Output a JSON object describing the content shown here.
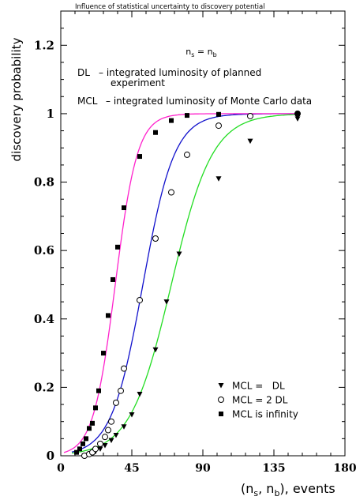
{
  "chart_data": {
    "type": "line",
    "title": "Influence of statistical uncertainty to discovery potential",
    "subtitle": "n_s = n_b",
    "xlabel": "(n_s, n_b), events",
    "ylabel": "discovery probability",
    "xlim": [
      0,
      180
    ],
    "ylim": [
      0,
      1.3
    ],
    "x_ticks": [
      "0",
      "45",
      "90",
      "135",
      "180"
    ],
    "y_ticks": [
      "0",
      "0.2",
      "0.4",
      "0.6",
      "0.8",
      "1",
      "1.2"
    ],
    "grid": false,
    "annotations": {
      "dl_key": "DL",
      "dl_desc": "– integrated luminosity of planned",
      "dl_desc2": "experiment",
      "mcl_key": "MCL",
      "mcl_desc": "– integrated luminosity of Monte Carlo data"
    },
    "legend_position": "bottom-right",
    "series": [
      {
        "name": "MCL =   DL",
        "marker": "triangle-down",
        "color": "#22dd22",
        "curve_mid": 70,
        "curve_width": 13,
        "points": [
          [
            15,
            0.0
          ],
          [
            18,
            0.004
          ],
          [
            20,
            0.008
          ],
          [
            22,
            0.012
          ],
          [
            25,
            0.02
          ],
          [
            28,
            0.03
          ],
          [
            32,
            0.045
          ],
          [
            35,
            0.06
          ],
          [
            40,
            0.085
          ],
          [
            45,
            0.12
          ],
          [
            50,
            0.18
          ],
          [
            60,
            0.31
          ],
          [
            67,
            0.45
          ],
          [
            75,
            0.59
          ],
          [
            100,
            0.81
          ],
          [
            120,
            0.92
          ],
          [
            150,
            0.985
          ]
        ]
      },
      {
        "name": "MCL = 2 DL",
        "marker": "circle-open",
        "color": "#1111cc",
        "curve_mid": 52,
        "curve_width": 10,
        "points": [
          [
            15,
            0.0
          ],
          [
            18,
            0.005
          ],
          [
            20,
            0.01
          ],
          [
            22,
            0.02
          ],
          [
            25,
            0.035
          ],
          [
            28,
            0.055
          ],
          [
            30,
            0.075
          ],
          [
            32,
            0.1
          ],
          [
            35,
            0.155
          ],
          [
            38,
            0.19
          ],
          [
            40,
            0.255
          ],
          [
            50,
            0.455
          ],
          [
            60,
            0.635
          ],
          [
            70,
            0.77
          ],
          [
            80,
            0.88
          ],
          [
            100,
            0.965
          ],
          [
            120,
            0.993
          ],
          [
            150,
            1.0
          ]
        ]
      },
      {
        "name": "MCL is infinity",
        "marker": "square-filled",
        "color": "#ff22cc",
        "curve_mid": 34.5,
        "curve_width": 7,
        "points": [
          [
            10,
            0.01
          ],
          [
            12,
            0.02
          ],
          [
            14,
            0.035
          ],
          [
            16,
            0.05
          ],
          [
            18,
            0.08
          ],
          [
            20,
            0.095
          ],
          [
            22,
            0.14
          ],
          [
            24,
            0.19
          ],
          [
            27,
            0.3
          ],
          [
            30,
            0.41
          ],
          [
            33,
            0.515
          ],
          [
            36,
            0.61
          ],
          [
            40,
            0.725
          ],
          [
            50,
            0.875
          ],
          [
            60,
            0.945
          ],
          [
            70,
            0.98
          ],
          [
            80,
            0.995
          ],
          [
            100,
            0.998
          ],
          [
            150,
            1.0
          ]
        ]
      }
    ]
  }
}
